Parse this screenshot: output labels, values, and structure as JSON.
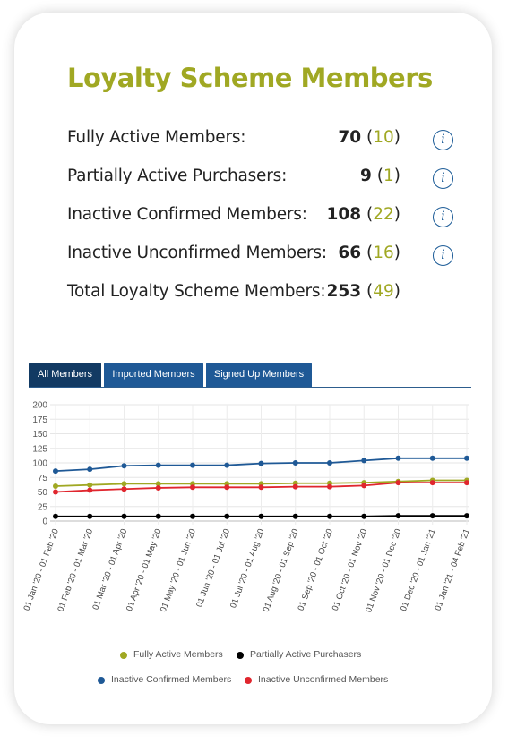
{
  "title": "Loyalty Scheme Members",
  "stats": [
    {
      "label": "Fully Active Members:",
      "value": "70",
      "delta": "10",
      "info": "i"
    },
    {
      "label": "Partially Active Purchasers:",
      "value": "9",
      "delta": "1",
      "info": "i"
    },
    {
      "label": "Inactive Confirmed Members:",
      "value": "108",
      "delta": "22",
      "info": "i"
    },
    {
      "label": "Inactive Unconfirmed Members:",
      "value": "66",
      "delta": "16",
      "info": "i"
    },
    {
      "label": "Total Loyalty Scheme Members:",
      "value": "253",
      "delta": "49"
    }
  ],
  "tabs": [
    {
      "label": "All Members",
      "active": true
    },
    {
      "label": "Imported Members",
      "active": false
    },
    {
      "label": "Signed Up Members",
      "active": false
    }
  ],
  "colors": {
    "accent": "#a0a823",
    "tab": "#1f5996",
    "tab_active": "#123a63",
    "info": "#1a5a96"
  },
  "chart_data": {
    "type": "line",
    "categories": [
      "01 Jan '20 - 01 Feb '20",
      "01 Feb '20 - 01 Mar '20",
      "01 Mar '20 - 01 Apr '20",
      "01 Apr '20 - 01 May '20",
      "01 May '20 - 01 Jun '20",
      "01 Jun '20 - 01 Jul '20",
      "01 Jul '20 - 01 Aug '20",
      "01 Aug '20 - 01 Sep '20",
      "01 Sep '20 - 01 Oct '20",
      "01 Oct '20 - 01 Nov '20",
      "01 Nov '20 - 01 Dec '20",
      "01 Dec '20 - 01 Jan '21",
      "01 Jan '21 - 04 Feb '21"
    ],
    "ylim": [
      0,
      200
    ],
    "yticks": [
      0,
      25,
      50,
      75,
      100,
      125,
      150,
      175,
      200
    ],
    "grid": true,
    "legend_position": "bottom",
    "series": [
      {
        "name": "Fully Active Members",
        "color": "#a0a823",
        "values": [
          60,
          62,
          64,
          64,
          64,
          64,
          64,
          65,
          65,
          66,
          68,
          70,
          70
        ]
      },
      {
        "name": "Partially Active Purchasers",
        "color": "#000000",
        "values": [
          8,
          8,
          8,
          8,
          8,
          8,
          8,
          8,
          8,
          8,
          9,
          9,
          9
        ]
      },
      {
        "name": "Inactive Confirmed Members",
        "color": "#1f5996",
        "values": [
          86,
          89,
          95,
          96,
          96,
          96,
          99,
          100,
          100,
          104,
          108,
          108,
          108
        ]
      },
      {
        "name": "Inactive Unconfirmed Members",
        "color": "#e0262e",
        "values": [
          50,
          53,
          55,
          57,
          58,
          58,
          58,
          59,
          59,
          61,
          66,
          66,
          66
        ]
      }
    ]
  }
}
